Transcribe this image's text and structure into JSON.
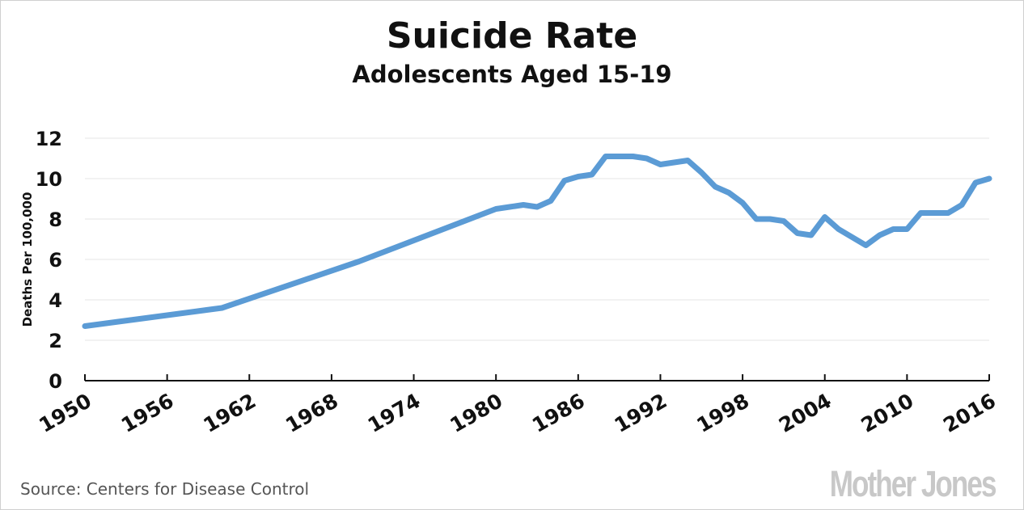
{
  "source": "Source: Centers for Disease Control",
  "logo": "Mother Jones",
  "colors": {
    "line": "#5b9bd5",
    "grid": "#e6e6e6",
    "axis": "#111111",
    "text": "#111111"
  },
  "chart_data": {
    "type": "line",
    "title": "Suicide Rate",
    "subtitle": "Adolescents Aged 15-19",
    "xlabel": "",
    "ylabel": "Deaths Per 100,000",
    "xlim": [
      1950,
      2016
    ],
    "ylim": [
      0,
      12
    ],
    "yticks": [
      0,
      2,
      4,
      6,
      8,
      10,
      12
    ],
    "xticks": [
      1950,
      1956,
      1962,
      1968,
      1974,
      1980,
      1986,
      1992,
      1998,
      2004,
      2010,
      2016
    ],
    "grid": true,
    "series": [
      {
        "x": [
          1950,
          1960,
          1970,
          1980,
          1981,
          1982,
          1983,
          1984,
          1985,
          1986,
          1987,
          1988,
          1989,
          1990,
          1991,
          1992,
          1993,
          1994,
          1995,
          1996,
          1997,
          1998,
          1999,
          2000,
          2001,
          2002,
          2003,
          2004,
          2005,
          2006,
          2007,
          2008,
          2009,
          2010,
          2011,
          2012,
          2013,
          2014,
          2015,
          2016
        ],
        "y": [
          2.7,
          3.6,
          5.9,
          8.5,
          8.6,
          8.7,
          8.6,
          8.9,
          9.9,
          10.1,
          10.2,
          11.1,
          11.1,
          11.1,
          11.0,
          10.7,
          10.8,
          10.9,
          10.3,
          9.6,
          9.3,
          8.8,
          8.0,
          8.0,
          7.9,
          7.3,
          7.2,
          8.1,
          7.5,
          7.1,
          6.7,
          7.2,
          7.5,
          7.5,
          8.3,
          8.3,
          8.3,
          8.7,
          9.8,
          10.0
        ]
      }
    ]
  }
}
